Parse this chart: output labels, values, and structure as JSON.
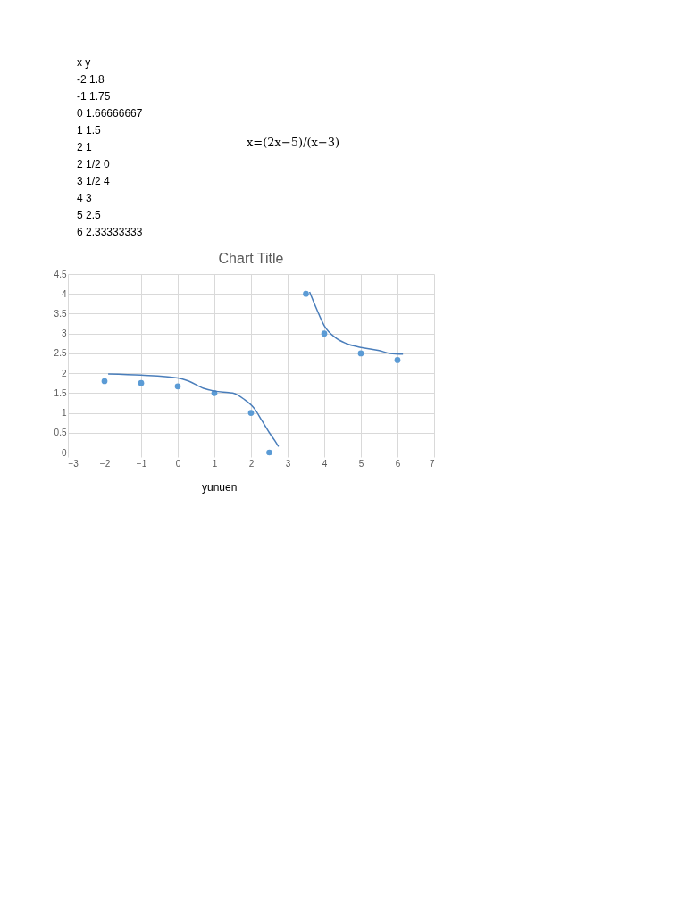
{
  "chart_data": {
    "type": "scatter",
    "title": "Chart Title",
    "annotations": [
      "x    y",
      "-2    1.8",
      "-1    1.75",
      "0    1.66666667",
      "1    1.5",
      "2    1",
      "2 1/2    0",
      "3 1/2    4",
      "4    3",
      "5    2.5",
      "6    2.33333333",
      "x=(2x−5)/(x−3)",
      "yunuen"
    ],
    "x": [
      -2,
      -1,
      0,
      1,
      2,
      2.5,
      3.5,
      4,
      5,
      6
    ],
    "series": [
      {
        "marker": "circle",
        "color": "#5b9bd5",
        "values": [
          1.8,
          1.75,
          1.67,
          1.5,
          1,
          0,
          4,
          3,
          2.5,
          2.33
        ]
      },
      {
        "type": "line",
        "color": "#4a7ebb",
        "x": [
          -1.9,
          -1,
          0,
          0.3,
          0.7,
          1,
          1.5,
          1.8,
          2.1,
          2.3,
          2.5,
          2.65,
          2.75
        ],
        "values": [
          1.98,
          1.95,
          1.88,
          1.8,
          1.62,
          1.55,
          1.5,
          1.35,
          1.1,
          0.8,
          0.5,
          0.3,
          0.15
        ]
      },
      {
        "type": "line",
        "color": "#4a7ebb",
        "x": [
          3.6,
          3.8,
          4,
          4.3,
          4.6,
          5,
          5.5,
          5.8,
          6.15
        ],
        "values": [
          4.05,
          3.6,
          3.2,
          2.9,
          2.75,
          2.65,
          2.57,
          2.5,
          2.48
        ]
      }
    ],
    "xlim": [
      -3,
      7
    ],
    "xticks": [
      -3,
      -2,
      -1,
      0,
      1,
      2,
      3,
      4,
      5,
      6,
      7
    ],
    "ylim": [
      0,
      4.5
    ],
    "yticks": [
      0,
      0.5,
      1,
      1.5,
      2,
      2.5,
      3,
      3.5,
      4,
      4.5
    ],
    "grid": true
  }
}
